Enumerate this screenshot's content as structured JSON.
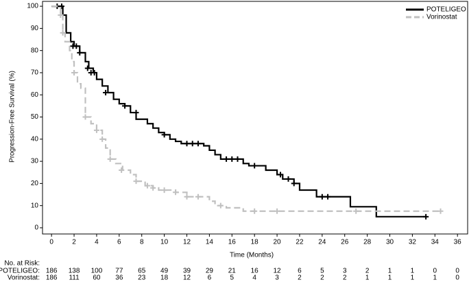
{
  "chart_data": {
    "type": "step",
    "ylabel": "Progression-Free Survival (%)",
    "xlabel": "Time (Months)",
    "xlim": [
      -0.8,
      36.9
    ],
    "ylim": [
      -2.8,
      102.2
    ],
    "xticks": [
      0,
      2,
      4,
      6,
      8,
      10,
      12,
      14,
      16,
      18,
      20,
      22,
      24,
      26,
      28,
      30,
      32,
      34,
      36
    ],
    "yticks": [
      0,
      10,
      20,
      30,
      40,
      50,
      60,
      70,
      80,
      90,
      100
    ],
    "legend": "top-right",
    "series": [
      {
        "name": "POTELIGEO",
        "color": "#000000",
        "dash": false,
        "x": [
          0,
          1.0,
          1.3,
          1.7,
          2.0,
          2.5,
          3.0,
          3.3,
          3.7,
          4.0,
          4.5,
          5.0,
          5.5,
          6.0,
          6.5,
          7.0,
          7.5,
          8.5,
          9.0,
          9.5,
          10.0,
          10.5,
          11.0,
          11.5,
          13.5,
          14.0,
          14.5,
          15.0,
          17.0,
          17.5,
          19.0,
          20.0,
          20.5,
          21.5,
          22.0,
          23.5,
          26.5,
          28.8,
          33.2
        ],
        "values": [
          100,
          96,
          88,
          84,
          82,
          79,
          75,
          72,
          70,
          67,
          64,
          61,
          58,
          56,
          55,
          52,
          49,
          47,
          45,
          43,
          42,
          40,
          39,
          38,
          37,
          35,
          33,
          31,
          29,
          28,
          26,
          24,
          22,
          20,
          17,
          14,
          9.5,
          5,
          5
        ],
        "censor_x": [
          0.5,
          0.9,
          1.9,
          2.2,
          2.5,
          3.2,
          3.5,
          3.8,
          4.8,
          6.5,
          7.5,
          10.0,
          12.0,
          12.5,
          13.0,
          15.5,
          16.0,
          16.5,
          18.0,
          20.3,
          21.0,
          21.5,
          24.0,
          24.5,
          33.2
        ],
        "censor_y": [
          100,
          100,
          82,
          82,
          79,
          72,
          70,
          70,
          61,
          55,
          52,
          42,
          38,
          38,
          38,
          31,
          31,
          31,
          28,
          24,
          22,
          20,
          14,
          14,
          5
        ]
      },
      {
        "name": "Vorinostat",
        "color": "#c0c0c0",
        "dash": true,
        "x": [
          0,
          0.8,
          1.0,
          1.2,
          1.6,
          1.8,
          2.0,
          2.3,
          2.6,
          3.0,
          3.5,
          4.0,
          4.5,
          4.8,
          5.2,
          5.7,
          6.3,
          7.0,
          7.5,
          8.3,
          9.0,
          9.5,
          11.0,
          12.0,
          14.0,
          14.5,
          15.5,
          17.0,
          34.5
        ],
        "values": [
          100,
          96,
          88,
          84,
          80,
          75,
          70,
          65,
          63,
          50,
          47,
          44,
          40,
          36,
          31,
          29,
          26,
          24,
          21,
          19,
          18,
          17,
          16,
          14,
          12,
          10,
          9,
          7.5,
          7.5
        ],
        "censor_x": [
          0.8,
          1.0,
          2.0,
          3.0,
          4.0,
          4.5,
          5.2,
          6.2,
          7.5,
          8.5,
          9.0,
          10.0,
          11.0,
          12.0,
          13.0,
          15.0,
          18.0,
          20.0,
          27.0,
          34.5
        ],
        "censor_y": [
          96,
          88,
          70,
          50,
          44,
          40,
          31,
          26,
          21,
          19,
          18,
          17,
          16,
          14,
          14,
          10,
          7.5,
          7.5,
          7.5,
          7.5
        ]
      }
    ],
    "at_risk": {
      "title": "No. at Risk:",
      "rows": [
        {
          "label": "POTELIGEO:",
          "values": [
            186,
            138,
            100,
            77,
            65,
            49,
            39,
            29,
            21,
            16,
            12,
            6,
            5,
            3,
            2,
            1,
            1,
            0,
            0
          ]
        },
        {
          "label": "Vorinostat:",
          "values": [
            186,
            111,
            60,
            36,
            23,
            18,
            12,
            6,
            5,
            4,
            3,
            2,
            2,
            2,
            1,
            1,
            1,
            1,
            0
          ]
        }
      ]
    }
  }
}
